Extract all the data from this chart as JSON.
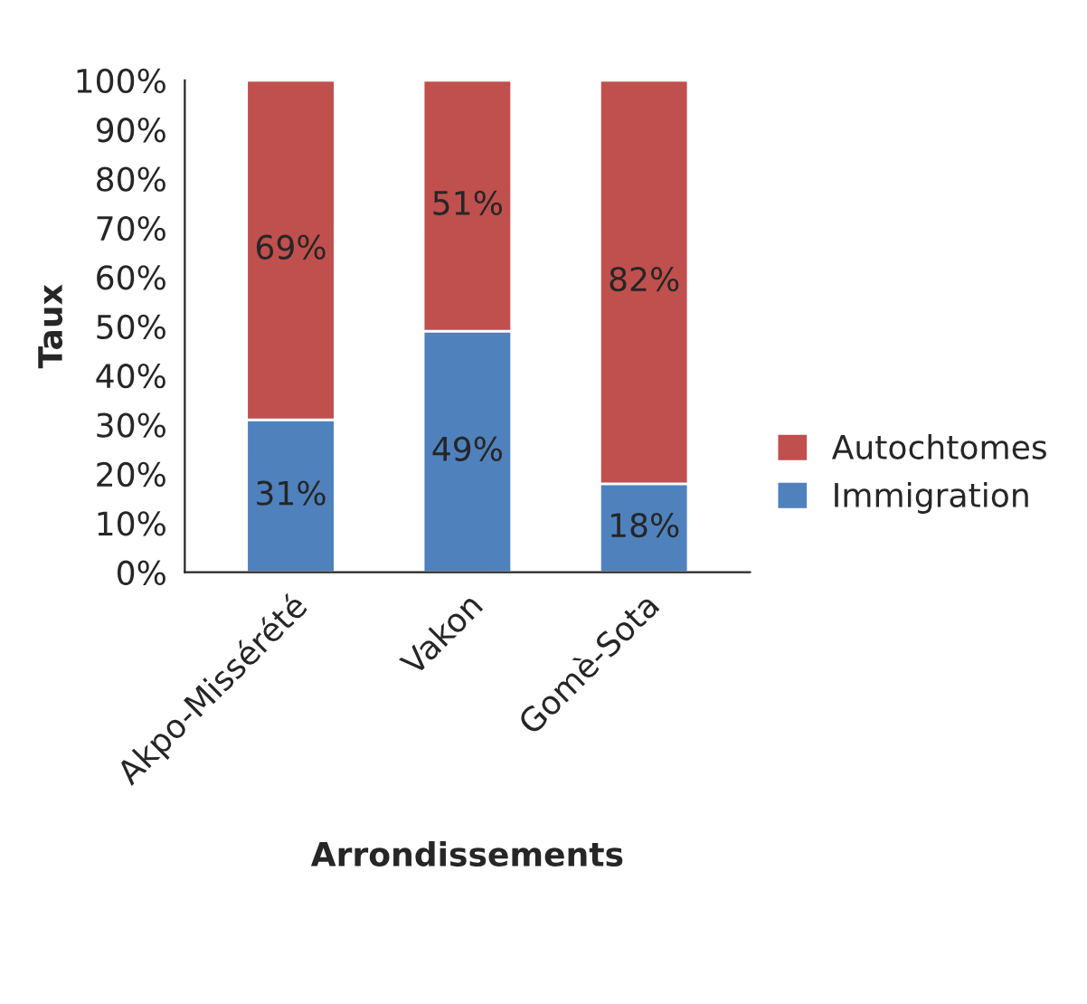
{
  "chart_data": {
    "type": "bar",
    "stacked": true,
    "xlabel": "Arrondissements",
    "ylabel": "Taux",
    "categories": [
      "Akpo-Missérété",
      "Vakon",
      "Gomè-Sota"
    ],
    "series": [
      {
        "name": "Immigration",
        "color": "#4f81bd",
        "values": [
          31,
          49,
          18
        ],
        "value_labels": [
          "31%",
          "49%",
          "18%"
        ]
      },
      {
        "name": "Autochtomes",
        "color": "#c0504d",
        "values": [
          69,
          51,
          82
        ],
        "value_labels": [
          "69%",
          "51%",
          "82%"
        ]
      }
    ],
    "ylim": [
      0,
      100
    ],
    "yticks": [
      {
        "value": 0,
        "label": "0%"
      },
      {
        "value": 10,
        "label": "10%"
      },
      {
        "value": 20,
        "label": "20%"
      },
      {
        "value": 30,
        "label": "30%"
      },
      {
        "value": 40,
        "label": "40%"
      },
      {
        "value": 50,
        "label": "50%"
      },
      {
        "value": 60,
        "label": "60%"
      },
      {
        "value": 70,
        "label": "70%"
      },
      {
        "value": 80,
        "label": "80%"
      },
      {
        "value": 90,
        "label": "90%"
      },
      {
        "value": 100,
        "label": "100%"
      }
    ],
    "grid": false,
    "legend": "right"
  }
}
